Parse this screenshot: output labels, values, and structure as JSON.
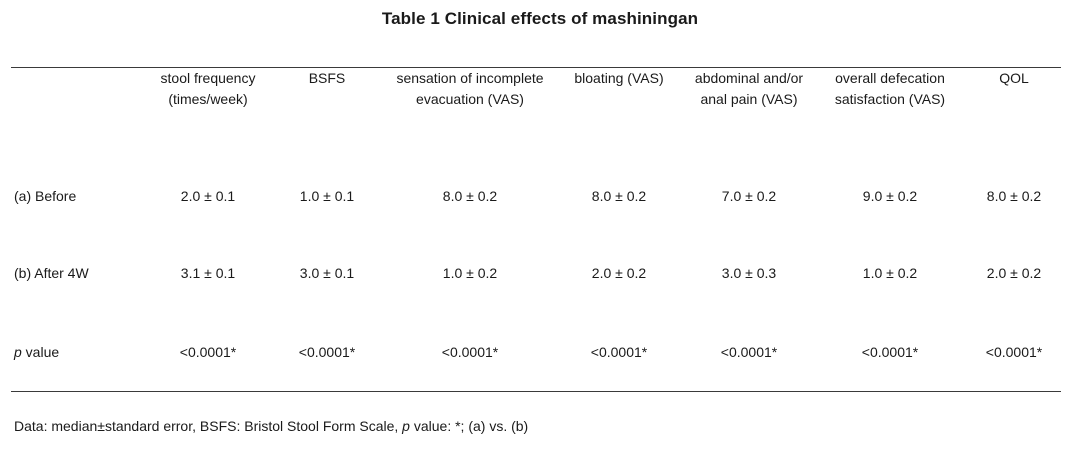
{
  "title": "Table 1  Clinical effects of mashiningan",
  "columns": [
    {
      "line1": "stool frequency",
      "line2": "(times/week)"
    },
    {
      "line1": "BSFS",
      "line2": ""
    },
    {
      "line1": "sensation of incomplete",
      "line2": "evacuation  (VAS)"
    },
    {
      "line1": "bloating (VAS)",
      "line2": ""
    },
    {
      "line1": "abdominal  and/or",
      "line2": "anal pain (VAS)"
    },
    {
      "line1": "overall  defecation",
      "line2": "satisfaction (VAS)"
    },
    {
      "line1": "QOL",
      "line2": ""
    }
  ],
  "rows": [
    {
      "label": "(a)  Before",
      "values": [
        "2.0 ± 0.1",
        "1.0 ± 0.1",
        "8.0 ± 0.2",
        "8.0 ± 0.2",
        "7.0 ± 0.2",
        "9.0 ± 0.2",
        "8.0 ± 0.2"
      ]
    },
    {
      "label": "(b)  After  4W",
      "values": [
        "3.1 ± 0.1",
        "3.0 ± 0.1",
        "1.0 ± 0.2",
        "2.0 ± 0.2",
        "3.0 ± 0.3",
        "1.0 ± 0.2",
        "2.0 ± 0.2"
      ]
    },
    {
      "label_italic": "p",
      "label": " value",
      "values": [
        "<0.0001*",
        "<0.0001*",
        "<0.0001*",
        "<0.0001*",
        "<0.0001*",
        "<0.0001*",
        "<0.0001*"
      ]
    }
  ],
  "footnote": {
    "part1": "Data:  median±standard  error,  BSFS: Bristol Stool Form Scale, ",
    "p": "p",
    "part2": " value:  *; (a) vs.  (b)"
  }
}
